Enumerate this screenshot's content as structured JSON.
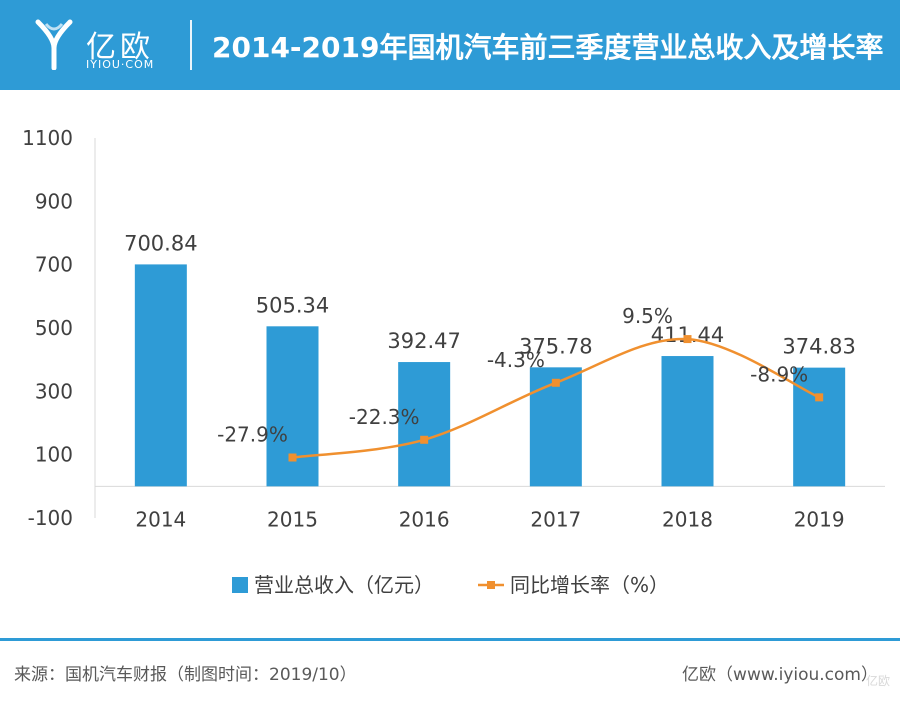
{
  "header": {
    "logo_text": "亿欧",
    "logo_sub": "IYIOU·COM",
    "title": "2014-2019年国机汽车前三季度营业总收入及增长率"
  },
  "chart_data": {
    "type": "bar+line",
    "categories": [
      "2014",
      "2015",
      "2016",
      "2017",
      "2018",
      "2019"
    ],
    "y_ticks": [
      "1100",
      "900",
      "700",
      "500",
      "300",
      "100",
      "-100"
    ],
    "ylim": [
      -100,
      1100
    ],
    "series": [
      {
        "name": "营业总收入（亿元）",
        "type": "bar",
        "color": "#2e9bd6",
        "values": [
          700.84,
          505.34,
          392.47,
          375.78,
          411.44,
          374.83
        ],
        "labels": [
          "700.84",
          "505.34",
          "392.47",
          "375.78",
          "411.44",
          "374.83"
        ]
      },
      {
        "name": "同比增长率（%）",
        "type": "line",
        "color": "#f0902f",
        "x": [
          "2015",
          "2016",
          "2017",
          "2018",
          "2019"
        ],
        "rates": [
          -27.9,
          -22.3,
          -4.3,
          9.5,
          -8.9
        ],
        "labels": [
          "-27.9%",
          "-22.3%",
          "-4.3%",
          "9.5%",
          "-8.9%"
        ]
      }
    ],
    "legend": "bottom-center",
    "grid": false
  },
  "footer": {
    "source": "来源：国机汽车财报（制图时间：2019/10）",
    "credit": "亿欧（www.iyiou.com）",
    "watermark": "亿欧"
  }
}
